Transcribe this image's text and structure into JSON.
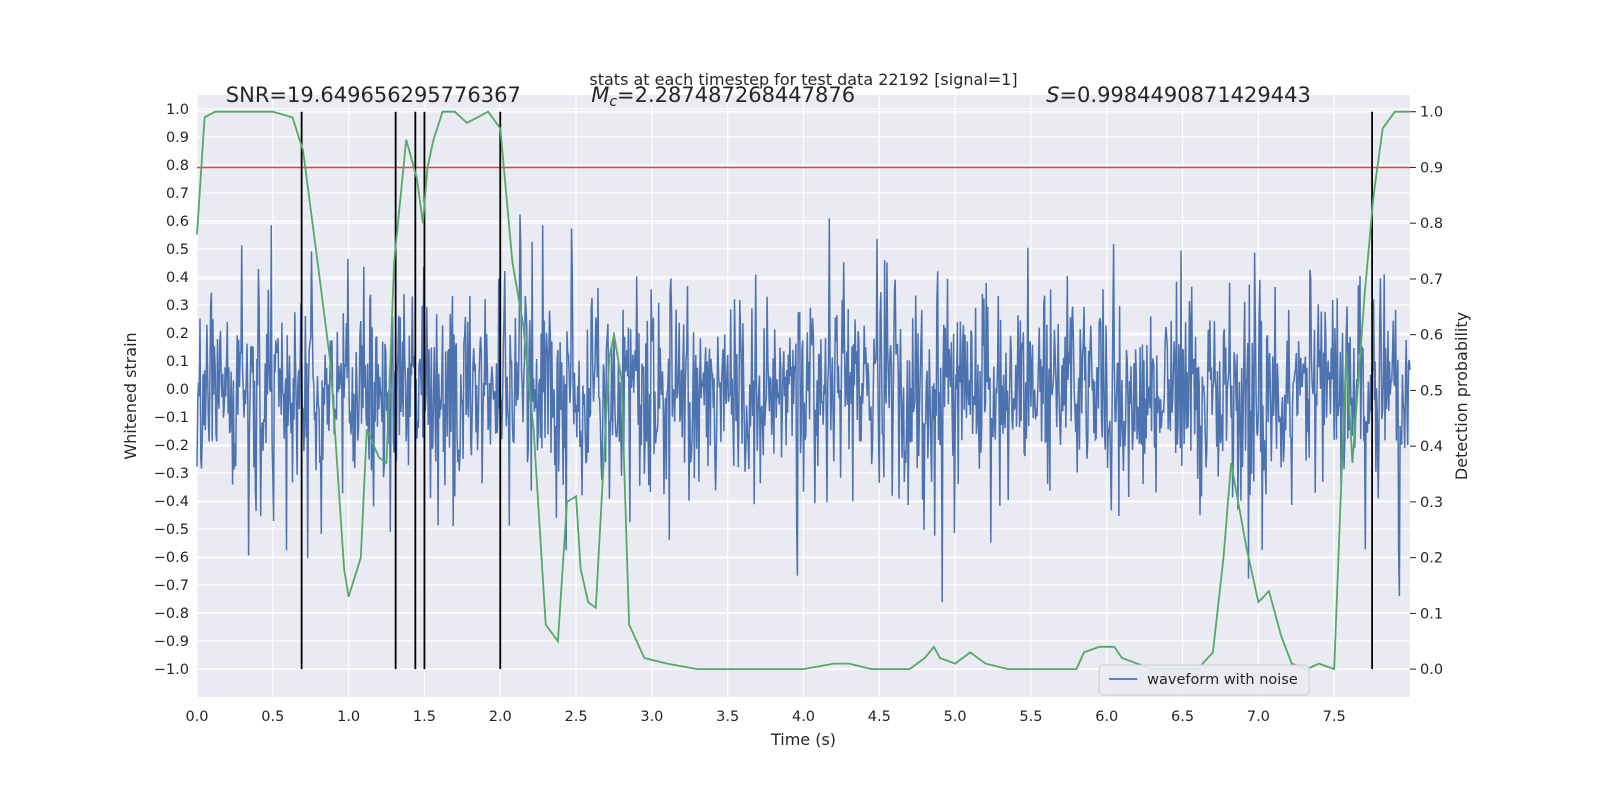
{
  "chart_data": {
    "type": "line",
    "title": "stats at each timestep for test data 22192 [signal=1]",
    "xlabel": "Time (s)",
    "ylabel": "Whitened strain",
    "ylabel_right": "Detection probability",
    "xlim": [
      0.0,
      8.0
    ],
    "ylim": [
      -1.1,
      1.05
    ],
    "ylim_right": [
      -0.05,
      1.03
    ],
    "xticks": [
      "0.0",
      "0.5",
      "1.0",
      "1.5",
      "2.0",
      "2.5",
      "3.0",
      "3.5",
      "4.0",
      "4.5",
      "5.0",
      "5.5",
      "6.0",
      "6.5",
      "7.0",
      "7.5"
    ],
    "yticks": [
      "1.0",
      "0.9",
      "0.8",
      "0.7",
      "0.6",
      "0.5",
      "0.4",
      "0.3",
      "0.2",
      "0.1",
      "0.0",
      "−0.1",
      "−0.2",
      "−0.3",
      "−0.4",
      "−0.5",
      "−0.6",
      "−0.7",
      "−0.8",
      "−0.9",
      "−1.0"
    ],
    "yticks_right": [
      "1.0",
      "0.9",
      "0.8",
      "0.7",
      "0.6",
      "0.5",
      "0.4",
      "0.3",
      "0.2",
      "0.1",
      "0.0"
    ],
    "grid": true,
    "legend_position": "lower-right",
    "annotations": {
      "snr": "SNR=19.649656295776367",
      "mc_symbol": "M",
      "mc_sub": "c",
      "mc_value": "=2.287487268447876",
      "s_symbol": "S",
      "s_value": "=0.9984490871429443"
    },
    "threshold": 0.9,
    "event_times": [
      0.69,
      1.31,
      1.44,
      1.5,
      2.0,
      7.75
    ],
    "series": [
      {
        "name": "waveform with noise",
        "axis": "left",
        "color": "#4c72b0",
        "sample_rate": 200,
        "envelope_note": "dense whitened noise, amplitude roughly ±0.35 typical, peaks to about ±0.95"
      },
      {
        "axis": "right",
        "color": "#55a868",
        "x": [
          0.0,
          0.05,
          0.12,
          0.2,
          0.35,
          0.5,
          0.63,
          0.7,
          0.8,
          0.88,
          0.97,
          1.0,
          1.08,
          1.12,
          1.2,
          1.25,
          1.3,
          1.38,
          1.45,
          1.49,
          1.52,
          1.56,
          1.62,
          1.7,
          1.78,
          1.85,
          1.92,
          2.0,
          2.08,
          2.15,
          2.22,
          2.3,
          2.38,
          2.44,
          2.5,
          2.53,
          2.58,
          2.63,
          2.72,
          2.75,
          2.8,
          2.85,
          2.95,
          3.1,
          3.3,
          3.6,
          4.0,
          4.2,
          4.3,
          4.45,
          4.6,
          4.7,
          4.8,
          4.86,
          4.9,
          5.0,
          5.1,
          5.2,
          5.35,
          5.55,
          5.7,
          5.8,
          5.85,
          5.95,
          6.05,
          6.1,
          6.3,
          6.6,
          6.7,
          6.77,
          6.82,
          6.92,
          7.0,
          7.07,
          7.15,
          7.22,
          7.32,
          7.4,
          7.5,
          7.58,
          7.62,
          7.7,
          7.76,
          7.82,
          7.9,
          7.95,
          8.0
        ],
        "y": [
          0.78,
          0.99,
          1.0,
          1.0,
          1.0,
          1.0,
          0.99,
          0.93,
          0.72,
          0.55,
          0.18,
          0.13,
          0.2,
          0.43,
          0.38,
          0.37,
          0.73,
          0.95,
          0.88,
          0.8,
          0.9,
          0.95,
          1.0,
          1.0,
          0.98,
          0.99,
          1.0,
          0.97,
          0.73,
          0.62,
          0.43,
          0.08,
          0.05,
          0.3,
          0.31,
          0.18,
          0.12,
          0.11,
          0.56,
          0.6,
          0.52,
          0.08,
          0.02,
          0.01,
          0.0,
          0.0,
          0.0,
          0.01,
          0.01,
          0.0,
          0.0,
          0.0,
          0.02,
          0.04,
          0.02,
          0.01,
          0.03,
          0.01,
          0.0,
          0.0,
          0.0,
          0.0,
          0.03,
          0.04,
          0.04,
          0.02,
          0.0,
          0.0,
          0.03,
          0.2,
          0.37,
          0.22,
          0.12,
          0.14,
          0.06,
          0.01,
          0.0,
          0.01,
          0.0,
          0.57,
          0.37,
          0.67,
          0.85,
          0.97,
          1.0,
          1.0,
          1.0
        ]
      }
    ]
  }
}
